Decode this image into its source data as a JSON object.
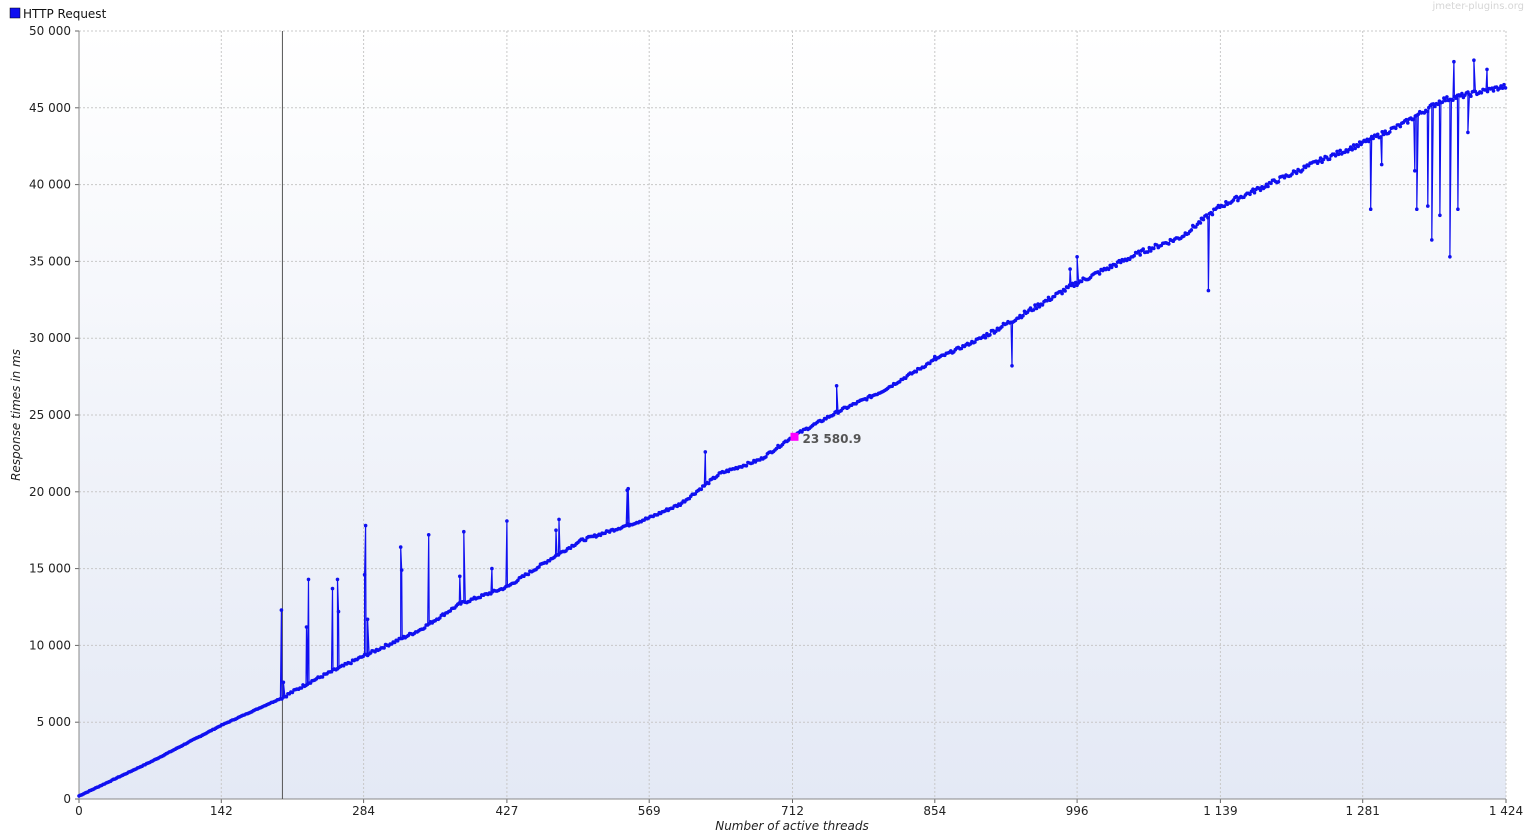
{
  "watermark": "jmeter-plugins.org",
  "colors": {
    "series": "#1010f0",
    "highlight": "#ff00ff",
    "plot_top": "#ffffff",
    "plot_bottom": "#e4e9f5",
    "grid": "#c8c8c8"
  },
  "chart_data": {
    "type": "line",
    "title": "",
    "xlabel": "Number of active threads",
    "ylabel": "Response times in ms",
    "xlim": [
      0,
      1424
    ],
    "ylim": [
      0,
      50000
    ],
    "x_ticks": [
      0,
      142,
      284,
      427,
      569,
      712,
      854,
      996,
      1139,
      1281,
      1424
    ],
    "x_tick_labels": [
      "0",
      "142",
      "284",
      "427",
      "569",
      "712",
      "854",
      "996",
      "1 139",
      "1 281",
      "1 424"
    ],
    "y_ticks": [
      0,
      5000,
      10000,
      15000,
      20000,
      25000,
      30000,
      35000,
      40000,
      45000,
      50000
    ],
    "y_tick_labels": [
      "0",
      "5 000",
      "10 000",
      "15 000",
      "20 000",
      "25 000",
      "30 000",
      "35 000",
      "40 000",
      "45 000",
      "50 000"
    ],
    "grid": true,
    "legend": "top-left",
    "marker_x": 203,
    "highlight": {
      "x": 714,
      "y": 23580.9,
      "label": "23 580.9"
    },
    "series": [
      {
        "name": "HTTP Request",
        "baseline": [
          [
            0,
            200
          ],
          [
            71,
            2400
          ],
          [
            142,
            4800
          ],
          [
            203,
            6600
          ],
          [
            230,
            7600
          ],
          [
            284,
            9300
          ],
          [
            340,
            11000
          ],
          [
            380,
            12700
          ],
          [
            427,
            13800
          ],
          [
            470,
            15600
          ],
          [
            500,
            16800
          ],
          [
            569,
            18300
          ],
          [
            600,
            19200
          ],
          [
            640,
            21200
          ],
          [
            680,
            22100
          ],
          [
            712,
            23600
          ],
          [
            760,
            25300
          ],
          [
            800,
            26500
          ],
          [
            854,
            28600
          ],
          [
            900,
            30000
          ],
          [
            930,
            31100
          ],
          [
            996,
            33600
          ],
          [
            1060,
            35600
          ],
          [
            1100,
            36600
          ],
          [
            1139,
            38600
          ],
          [
            1200,
            40400
          ],
          [
            1240,
            41600
          ],
          [
            1281,
            42700
          ],
          [
            1320,
            43900
          ],
          [
            1360,
            45500
          ],
          [
            1424,
            46400
          ]
        ],
        "spikes": [
          [
            202,
            12300
          ],
          [
            204,
            7600
          ],
          [
            229,
            14300
          ],
          [
            227,
            11200
          ],
          [
            253,
            13700
          ],
          [
            258,
            14300
          ],
          [
            259,
            12200
          ],
          [
            286,
            17800
          ],
          [
            285,
            14600
          ],
          [
            288,
            11700
          ],
          [
            321,
            16400
          ],
          [
            322,
            14900
          ],
          [
            349,
            17200
          ],
          [
            384,
            17400
          ],
          [
            380,
            14500
          ],
          [
            412,
            15000
          ],
          [
            427,
            18100
          ],
          [
            476,
            17500
          ],
          [
            479,
            18200
          ],
          [
            477,
            15900
          ],
          [
            547,
            20100
          ],
          [
            548,
            20200
          ],
          [
            625,
            22600
          ],
          [
            756,
            26900
          ],
          [
            854,
            28800
          ],
          [
            931,
            28200
          ],
          [
            989,
            34500
          ],
          [
            996,
            35300
          ],
          [
            1127,
            33100
          ],
          [
            1120,
            37800
          ],
          [
            1289,
            38400
          ],
          [
            1300,
            41300
          ],
          [
            1333,
            40900
          ],
          [
            1335,
            38400
          ],
          [
            1346,
            38600
          ],
          [
            1350,
            36400
          ],
          [
            1358,
            38000
          ],
          [
            1368,
            35300
          ],
          [
            1372,
            48000
          ],
          [
            1376,
            38400
          ],
          [
            1392,
            48100
          ],
          [
            1386,
            43400
          ],
          [
            1405,
            47500
          ]
        ]
      }
    ]
  }
}
